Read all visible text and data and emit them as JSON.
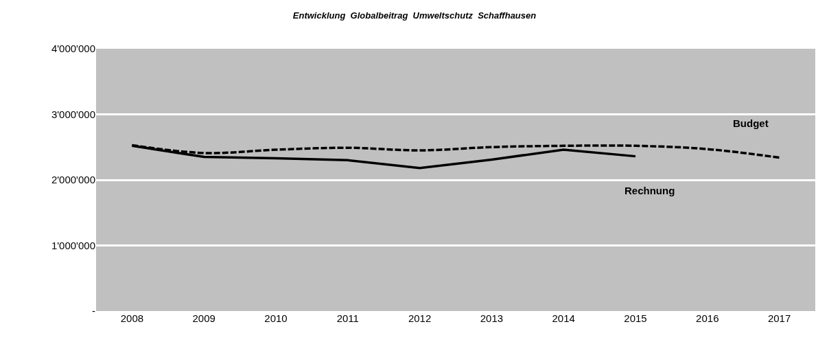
{
  "chart_data": {
    "type": "line",
    "title": "Entwicklung  Globalbeitrag  Umweltschutz  Schaffhausen",
    "categories": [
      "2008",
      "2009",
      "2010",
      "2011",
      "2012",
      "2013",
      "2014",
      "2015",
      "2016",
      "2017"
    ],
    "series": [
      {
        "name": "Budget",
        "color": "#000000",
        "line_style": "dashed",
        "values": [
          2530000,
          2410000,
          2460000,
          2490000,
          2450000,
          2500000,
          2520000,
          2520000,
          2470000,
          2340000
        ]
      },
      {
        "name": "Rechnung",
        "color": "#000000",
        "line_style": "solid",
        "values": [
          2520000,
          2350000,
          2330000,
          2300000,
          2180000,
          2310000,
          2460000,
          2360000,
          null,
          null
        ]
      }
    ],
    "ylim": [
      0,
      4000000
    ],
    "yticks": [
      {
        "value": 0,
        "label": "-"
      },
      {
        "value": 1000000,
        "label": "1'000'000"
      },
      {
        "value": 2000000,
        "label": "2'000'000"
      },
      {
        "value": 3000000,
        "label": "3'000'000"
      },
      {
        "value": 4000000,
        "label": "4'000'000"
      }
    ],
    "grid": "y",
    "legend": false,
    "marker": "none"
  }
}
